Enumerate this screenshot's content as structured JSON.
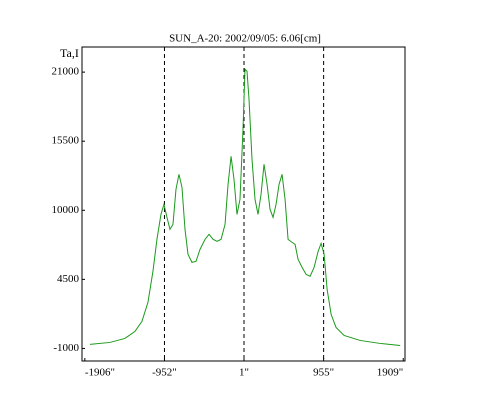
{
  "chart_data": {
    "type": "line",
    "title": "SUN_A-20: 2002/09/05: 6.06[cm]",
    "y_label": "Ta,I",
    "x": [
      -1845,
      -1606,
      -1426,
      -1306,
      -1222,
      -1150,
      -1090,
      -1042,
      -994,
      -958,
      -922,
      -886,
      -850,
      -814,
      -778,
      -742,
      -706,
      -670,
      -622,
      -574,
      -526,
      -466,
      -418,
      -370,
      -322,
      -274,
      -226,
      -190,
      -154,
      -119,
      -83,
      -47,
      -11,
      13,
      37,
      61,
      97,
      133,
      169,
      205,
      241,
      277,
      313,
      349,
      385,
      421,
      457,
      493,
      529,
      577,
      613,
      649,
      697,
      745,
      793,
      841,
      889,
      925,
      961,
      997,
      1045,
      1104,
      1200,
      1392,
      1632,
      1872
    ],
    "series": [
      {
        "name": "Ta,I",
        "color": "#1a9a1a",
        "values": [
          -681,
          -522,
          -203,
          355,
          1151,
          2665,
          5135,
          7685,
          9677,
          10474,
          9438,
          8482,
          8880,
          11669,
          12864,
          11828,
          8482,
          6490,
          5852,
          5932,
          6888,
          7685,
          8084,
          7685,
          7526,
          7685,
          8880,
          12068,
          14299,
          12466,
          9677,
          10873,
          16450,
          21231,
          21072,
          18840,
          14060,
          10873,
          9677,
          11271,
          13661,
          12068,
          10075,
          9438,
          10474,
          12068,
          12864,
          10873,
          7685,
          7446,
          7287,
          6092,
          5454,
          4896,
          4737,
          5454,
          6729,
          7366,
          6490,
          3701,
          1709,
          673,
          36,
          -363,
          -602,
          -761
        ]
      }
    ],
    "xlim": [
      -1940,
      1930
    ],
    "ylim": [
      -2000,
      23000
    ],
    "xticks": [
      {
        "value": -1906,
        "label": "-1906\""
      },
      {
        "value": -952,
        "label": "-952\""
      },
      {
        "value": 1,
        "label": "1\""
      },
      {
        "value": 955,
        "label": "955\""
      },
      {
        "value": 1909,
        "label": "1909\""
      }
    ],
    "yticks": [
      21000,
      15500,
      10000,
      4500,
      -1000
    ],
    "vlines": [
      -952,
      1,
      955
    ]
  }
}
